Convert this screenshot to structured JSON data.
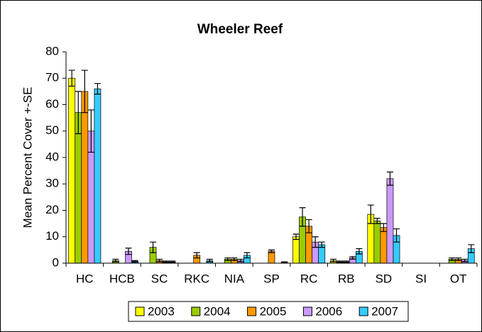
{
  "chart_data": {
    "type": "bar",
    "title": "Wheeler Reef",
    "y_label": "Mean Percent Cover +-SE",
    "categories": [
      "HC",
      "HCB",
      "SC",
      "RKC",
      "NIA",
      "SP",
      "RC",
      "RB",
      "SD",
      "SI",
      "OT"
    ],
    "series": [
      {
        "name": "2003",
        "color": "#ffff00",
        "values": [
          70,
          0,
          0,
          0,
          0,
          0,
          10,
          1,
          18.5,
          0,
          0
        ],
        "errors": [
          3,
          0,
          0,
          0,
          0,
          0,
          1,
          0.5,
          3.5,
          0,
          0
        ]
      },
      {
        "name": "2004",
        "color": "#99cc00",
        "values": [
          57,
          1,
          6,
          0,
          1.5,
          0,
          17.5,
          0.5,
          16,
          0,
          1.5
        ],
        "errors": [
          8,
          0.5,
          2,
          0,
          0.5,
          0,
          3.5,
          0.3,
          1,
          0,
          0.5
        ]
      },
      {
        "name": "2005",
        "color": "#ff9900",
        "values": [
          65,
          0,
          1,
          3,
          1.5,
          4.5,
          14,
          0.5,
          13.5,
          0,
          1.5
        ],
        "errors": [
          8,
          0,
          0.5,
          1,
          0.5,
          0.5,
          2.5,
          0.3,
          1.5,
          0,
          0.5
        ]
      },
      {
        "name": "2006",
        "color": "#cc99ff",
        "values": [
          50,
          4.5,
          0.5,
          0,
          1,
          0,
          8,
          2,
          32,
          0,
          1
        ],
        "errors": [
          8,
          1.2,
          0.3,
          0,
          0.5,
          0,
          2,
          0.5,
          2.5,
          0,
          0.5
        ]
      },
      {
        "name": "2007",
        "color": "#33ccff",
        "values": [
          66,
          0.7,
          0.5,
          1,
          3,
          0.3,
          7,
          4.5,
          10.5,
          0,
          5.5
        ],
        "errors": [
          2,
          0.3,
          0.3,
          0.5,
          1,
          0.2,
          1,
          1,
          2.5,
          0,
          1.5
        ]
      }
    ],
    "ylim": [
      0,
      80
    ],
    "yticks": [
      0,
      10,
      20,
      30,
      40,
      50,
      60,
      70,
      80
    ],
    "grid": false
  }
}
